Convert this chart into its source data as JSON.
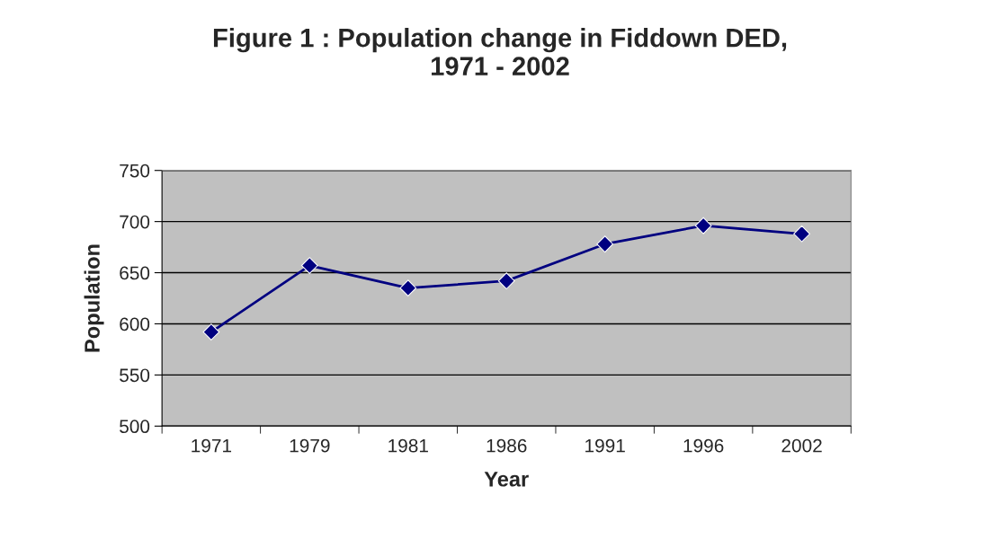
{
  "chart_data": {
    "type": "line",
    "title": "Figure 1 : Population change in Fiddown DED,\n1971 - 2002",
    "xlabel": "Year",
    "ylabel": "Population",
    "categories": [
      "1971",
      "1979",
      "1981",
      "1986",
      "1991",
      "1996",
      "2002"
    ],
    "series": [
      {
        "color": "#000080",
        "values": [
          592,
          657,
          635,
          642,
          678,
          696,
          688
        ]
      }
    ],
    "ylim": [
      500,
      750
    ],
    "yticks": [
      500,
      550,
      600,
      650,
      700,
      750
    ],
    "grid": "y",
    "marker": "diamond",
    "line_style": "solid",
    "legend": false
  }
}
